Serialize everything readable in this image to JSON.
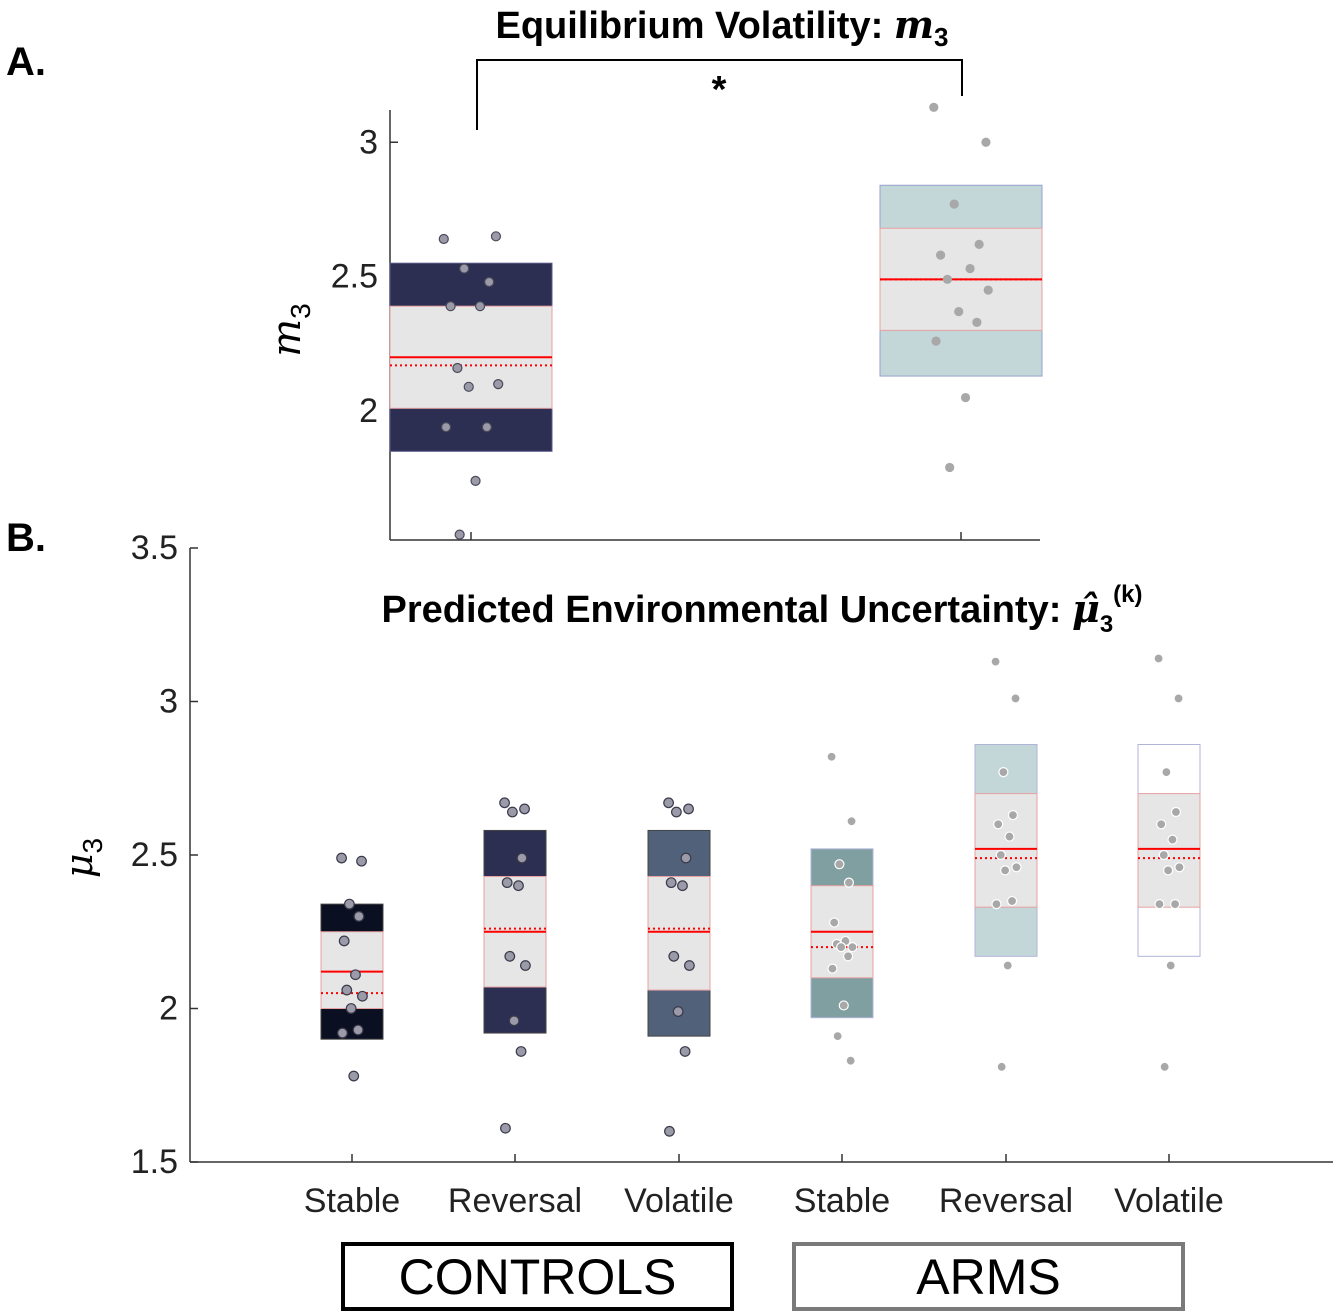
{
  "panel_labels": {
    "a": "A.",
    "b": "B."
  },
  "colors": {
    "ctrl_stable": "#0b0f22",
    "ctrl_reversal": "#2d2f52",
    "ctrl_volatile": "#51617a",
    "arms_stable": "#7f9fa0",
    "arms_reversal": "#c3d6d8",
    "arms_volatile": "#ffffff",
    "inner_box": "#e6e6e6",
    "mean_line": "#ff0000"
  },
  "chart_data": [
    {
      "type": "box",
      "panel": "A",
      "title": "Equilibrium Volatility:",
      "title_math": "m",
      "title_math_sub": "3",
      "ylabel_math": "m",
      "ylabel_sub": "3",
      "yticks": [
        "2",
        "2.5",
        "3"
      ],
      "ylim": [
        1.52,
        3.12
      ],
      "significance": "*",
      "groups": [
        {
          "name": "",
          "color": "ctrl_reversal",
          "mean": 2.2,
          "median": 2.17,
          "inner": [
            2.01,
            2.39
          ],
          "outer": [
            1.85,
            2.55
          ],
          "points": [
            2.64,
            2.65,
            2.53,
            2.48,
            2.39,
            2.39,
            2.16,
            2.1,
            2.09,
            1.94,
            1.94,
            1.74,
            1.54
          ]
        },
        {
          "name": "",
          "color": "arms_reversal",
          "mean": 2.49,
          "median": 2.49,
          "inner": [
            2.3,
            2.68
          ],
          "outer": [
            2.13,
            2.84
          ],
          "points": [
            3.13,
            3.0,
            2.77,
            2.62,
            2.58,
            2.53,
            2.49,
            2.45,
            2.37,
            2.33,
            2.26,
            2.05,
            1.79
          ]
        }
      ]
    },
    {
      "type": "box",
      "panel": "B",
      "title": "Predicted Environmental Uncertainty:",
      "title_math": "μ̂",
      "title_math_sub": "3",
      "title_math_sup": "(k)",
      "ylabel_math": "μ",
      "ylabel_sub": "3",
      "yticks": [
        "1.5",
        "2",
        "2.5",
        "3",
        "3.5"
      ],
      "ylim": [
        1.5,
        3.5
      ],
      "categories": [
        "Stable",
        "Reversal",
        "Volatile",
        "Stable",
        "Reversal",
        "Volatile"
      ],
      "groups": [
        {
          "color": "ctrl_stable",
          "mean": 2.12,
          "median": 2.05,
          "inner": [
            2.0,
            2.25
          ],
          "outer": [
            1.9,
            2.34
          ],
          "points": [
            2.49,
            2.48,
            2.34,
            2.3,
            2.22,
            2.11,
            2.06,
            2.04,
            2.0,
            1.93,
            1.92,
            1.78
          ]
        },
        {
          "color": "ctrl_reversal",
          "mean": 2.25,
          "median": 2.26,
          "inner": [
            2.07,
            2.43
          ],
          "outer": [
            1.92,
            2.58
          ],
          "points": [
            2.67,
            2.65,
            2.64,
            2.49,
            2.41,
            2.4,
            2.17,
            2.14,
            1.96,
            1.86,
            1.61
          ]
        },
        {
          "color": "ctrl_volatile",
          "mean": 2.25,
          "median": 2.26,
          "inner": [
            2.06,
            2.43
          ],
          "outer": [
            1.91,
            2.58
          ],
          "points": [
            2.67,
            2.65,
            2.64,
            2.49,
            2.41,
            2.4,
            2.17,
            2.14,
            1.99,
            1.86,
            1.6
          ]
        },
        {
          "color": "arms_stable",
          "mean": 2.25,
          "median": 2.2,
          "inner": [
            2.1,
            2.4
          ],
          "outer": [
            1.97,
            2.52
          ],
          "points": [
            2.82,
            2.61,
            2.47,
            2.41,
            2.28,
            2.22,
            2.21,
            2.2,
            2.2,
            2.17,
            2.13,
            2.01,
            1.91,
            1.83
          ]
        },
        {
          "color": "arms_reversal",
          "mean": 2.52,
          "median": 2.49,
          "inner": [
            2.33,
            2.7
          ],
          "outer": [
            2.17,
            2.86
          ],
          "points": [
            3.13,
            3.01,
            2.77,
            2.63,
            2.6,
            2.56,
            2.5,
            2.46,
            2.45,
            2.35,
            2.34,
            2.14,
            1.81
          ]
        },
        {
          "color": "arms_volatile",
          "mean": 2.52,
          "median": 2.49,
          "inner": [
            2.33,
            2.7
          ],
          "outer": [
            2.17,
            2.86
          ],
          "points": [
            3.14,
            3.01,
            2.77,
            2.64,
            2.6,
            2.55,
            2.5,
            2.46,
            2.45,
            2.34,
            2.34,
            2.14,
            1.81
          ]
        }
      ]
    }
  ],
  "group_labels": {
    "controls": "CONTROLS",
    "arms": "ARMS"
  }
}
